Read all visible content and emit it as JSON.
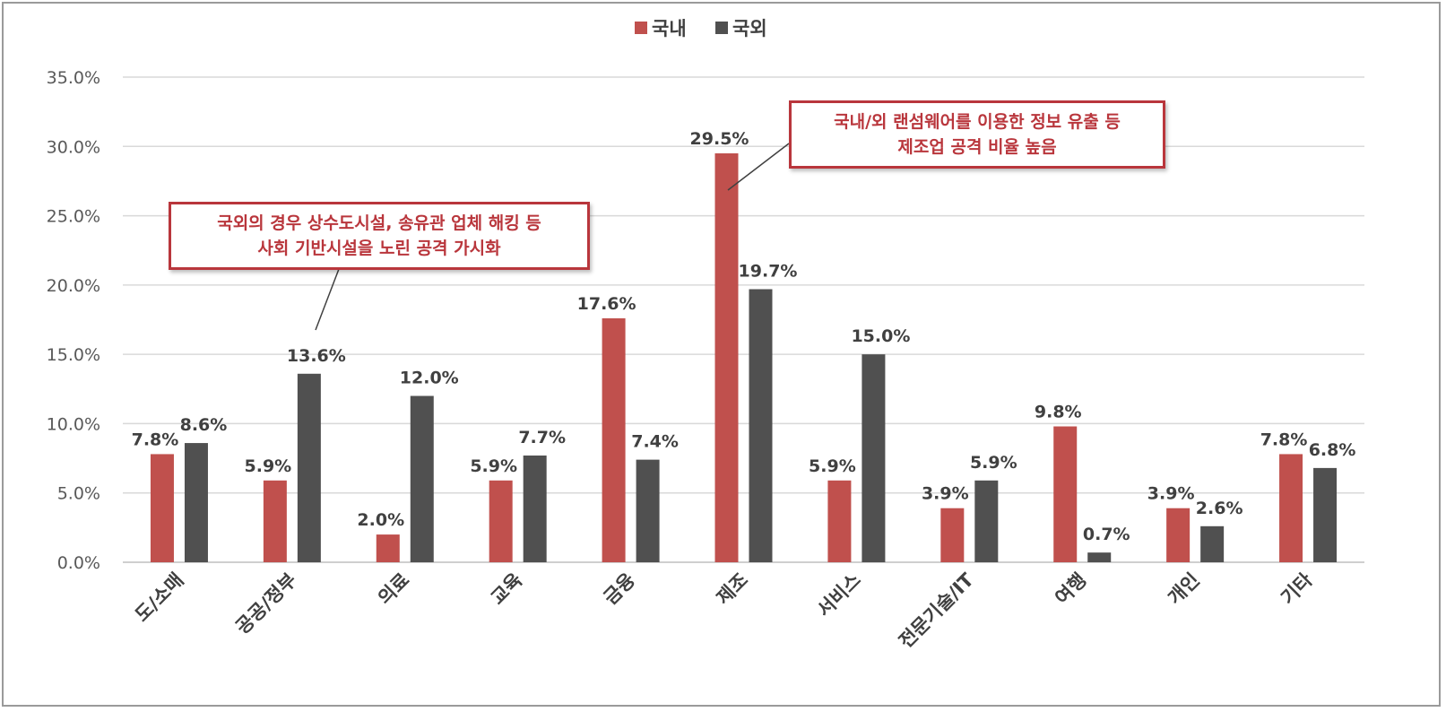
{
  "legend": [
    {
      "label": "국내",
      "color": "#c0504d"
    },
    {
      "label": "국외",
      "color": "#505050"
    }
  ],
  "callouts": [
    {
      "lines": [
        "국외의 경우 상수도시설, 송유관 업체 해킹 등",
        "사회 기반시설을 노린 공격 가시화"
      ]
    },
    {
      "lines": [
        "국내/외 랜섬웨어를 이용한 정보 유출 등",
        "제조업 공격 비율 높음"
      ]
    }
  ],
  "chart_data": {
    "type": "bar",
    "categories": [
      "도/소매",
      "공공/정부",
      "의료",
      "교육",
      "금융",
      "제조",
      "서비스",
      "전문기술/IT",
      "여행",
      "개인",
      "기타"
    ],
    "series": [
      {
        "name": "국내",
        "color": "#c0504d",
        "values": [
          7.8,
          5.9,
          2.0,
          5.9,
          17.6,
          29.5,
          5.9,
          3.9,
          9.8,
          3.9,
          7.8
        ],
        "labels": [
          "7.8%",
          "5.9%",
          "2.0%",
          "5.9%",
          "17.6%",
          "29.5%",
          "5.9%",
          "3.9%",
          "9.8%",
          "3.9%",
          "7.8%"
        ]
      },
      {
        "name": "국외",
        "color": "#505050",
        "values": [
          8.6,
          13.6,
          12.0,
          7.7,
          7.4,
          19.7,
          15.0,
          5.9,
          0.7,
          2.6,
          6.8
        ],
        "labels": [
          "8.6%",
          "13.6%",
          "12.0%",
          "7.7%",
          "7.4%",
          "19.7%",
          "15.0%",
          "5.9%",
          "0.7%",
          "2.6%",
          "6.8%"
        ]
      }
    ],
    "yticks": [
      "0.0%",
      "5.0%",
      "10.0%",
      "15.0%",
      "20.0%",
      "25.0%",
      "30.0%",
      "35.0%"
    ],
    "ylim": [
      0,
      35
    ],
    "grid": true,
    "legend_position": "top-center"
  }
}
